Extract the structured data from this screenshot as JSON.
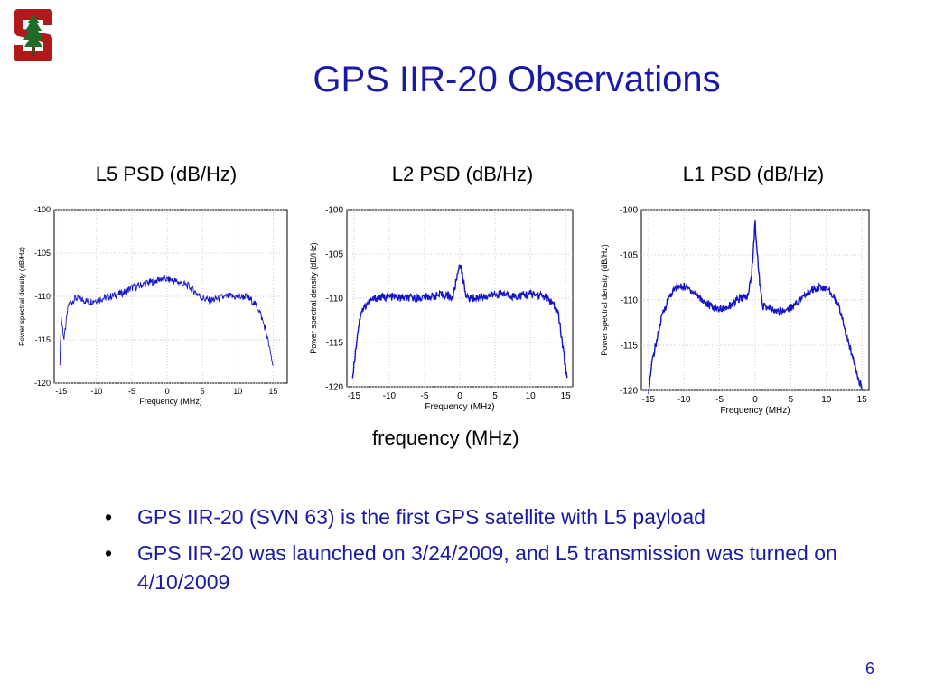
{
  "slide": {
    "title": "GPS IIR-20 Observations",
    "logo_icon": "stanford-tree-logo",
    "panel_labels": [
      "L5 PSD (dB/Hz)",
      "L2 PSD (dB/Hz)",
      "L1 PSD (dB/Hz)"
    ],
    "frequency_caption": "frequency (MHz)",
    "bullets": [
      "GPS IIR-20 (SVN 63) is the first GPS satellite with L5 payload",
      "GPS IIR-20 was launched on 3/24/2009, and L5 transmission was turned on 4/10/2009"
    ],
    "page_number": "6",
    "colors": {
      "title": "#1a1aa6",
      "trace": "#1515c8",
      "logo": "#b01a1a"
    }
  },
  "chart_data": [
    {
      "type": "line",
      "panel": "L5",
      "xlabel": "Frequency (MHz)",
      "ylabel": "Power spectral density (dB/Hz)",
      "xlim": [
        -16,
        17
      ],
      "ylim": [
        -120,
        -100
      ],
      "xticks": [
        -15,
        -10,
        -5,
        0,
        5,
        10,
        15
      ],
      "yticks": [
        -100,
        -105,
        -110,
        -115,
        -120
      ],
      "grid": true,
      "series": [
        {
          "x": [
            -15.2,
            -15,
            -14.6,
            -14,
            -13,
            -12,
            -11,
            -10,
            -9,
            -8,
            -7,
            -6,
            -5,
            -4,
            -3,
            -2,
            -1,
            0,
            1,
            2,
            3,
            4,
            5,
            6,
            7,
            8,
            9,
            10,
            11,
            12,
            13,
            14,
            14.6,
            15
          ],
          "y": [
            -117.5,
            -112.5,
            -115,
            -111,
            -110.2,
            -110.4,
            -110.6,
            -110.4,
            -110.2,
            -110,
            -109.8,
            -109.5,
            -109,
            -108.8,
            -108.5,
            -108.3,
            -108,
            -108,
            -108.2,
            -108.5,
            -108.8,
            -109.5,
            -110.2,
            -110.5,
            -110.3,
            -110.1,
            -110,
            -110.1,
            -110,
            -110.5,
            -111.5,
            -114,
            -116.5,
            -118
          ]
        }
      ]
    },
    {
      "type": "line",
      "panel": "L2",
      "xlabel": "Frequency (MHz)",
      "ylabel": "Power spectral density (dB/Hz)",
      "xlim": [
        -16,
        16
      ],
      "ylim": [
        -120,
        -100
      ],
      "xticks": [
        -15,
        -10,
        -5,
        0,
        5,
        10,
        15
      ],
      "yticks": [
        -100,
        -105,
        -110,
        -115,
        -120
      ],
      "grid": true,
      "series": [
        {
          "x": [
            -15.2,
            -14.5,
            -14,
            -13,
            -12,
            -10,
            -8,
            -6,
            -4,
            -2,
            -1,
            -0.5,
            0,
            0.5,
            1,
            2,
            4,
            6,
            8,
            10,
            12,
            13,
            14,
            14.5,
            15.2
          ],
          "y": [
            -119,
            -114,
            -111.5,
            -110.5,
            -110,
            -109.8,
            -110,
            -110,
            -109.8,
            -109.6,
            -110,
            -108,
            -106,
            -108,
            -110,
            -110,
            -109.7,
            -109.5,
            -109.8,
            -109.5,
            -109.8,
            -110.5,
            -111.8,
            -115,
            -119
          ]
        }
      ]
    },
    {
      "type": "line",
      "panel": "L1",
      "xlabel": "Frequency (MHz)",
      "ylabel": "Power spectral density (dB/Hz)",
      "xlim": [
        -16,
        16
      ],
      "ylim": [
        -120,
        -100
      ],
      "xticks": [
        -15,
        -10,
        -5,
        0,
        5,
        10,
        15
      ],
      "yticks": [
        -100,
        -105,
        -110,
        -115,
        -120
      ],
      "grid": true,
      "series": [
        {
          "x": [
            -15,
            -14.5,
            -14,
            -13,
            -12,
            -11,
            -10,
            -9,
            -8,
            -7,
            -6,
            -5,
            -4,
            -3,
            -2,
            -1,
            -0.5,
            0,
            0.5,
            1,
            2,
            3,
            4,
            5,
            6,
            7,
            8,
            9,
            10,
            11,
            12,
            13,
            14,
            14.5,
            15
          ],
          "y": [
            -120,
            -117,
            -115,
            -111.5,
            -109.5,
            -108.6,
            -108.5,
            -108.9,
            -109.6,
            -110.3,
            -110.8,
            -111,
            -110.8,
            -110.3,
            -109.8,
            -109.6,
            -107,
            -101.5,
            -107,
            -110.6,
            -111,
            -111.3,
            -111.2,
            -110.8,
            -110.2,
            -109.5,
            -108.8,
            -108.6,
            -108.8,
            -109.5,
            -111.3,
            -114.5,
            -117,
            -118.5,
            -120
          ]
        }
      ]
    }
  ]
}
